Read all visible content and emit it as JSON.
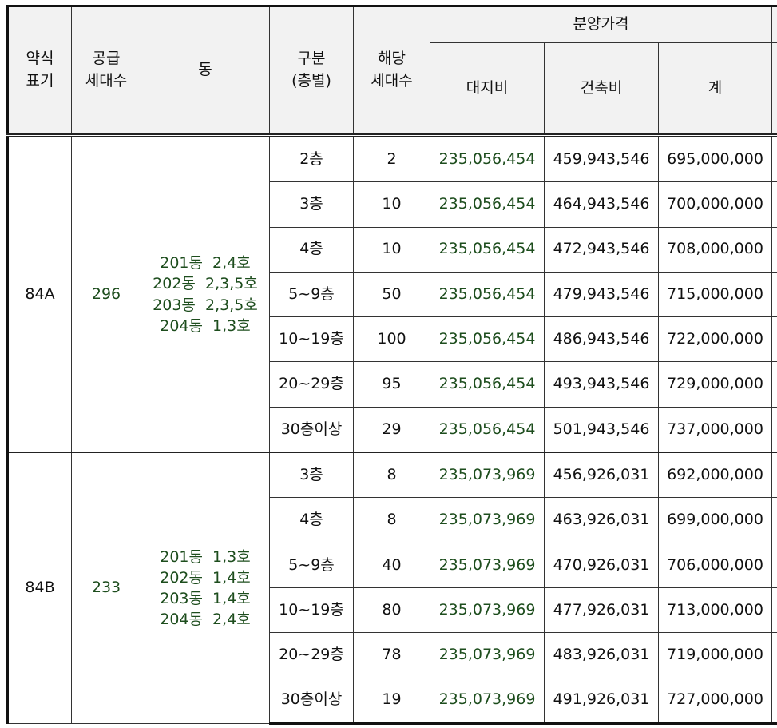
{
  "header": {
    "type_code": [
      "약식",
      "표기"
    ],
    "supply_units": [
      "공급",
      "세대수"
    ],
    "building": "동",
    "category": [
      "구분",
      "(층별)"
    ],
    "applicable_units": [
      "해당",
      "세대수"
    ],
    "sale_price": "분양가격",
    "land_cost": "대지비",
    "construction_cost": "건축비",
    "total": "계"
  },
  "groups": [
    {
      "type_code": "84A",
      "supply_units": "296",
      "buildings": [
        "201동  2,4호",
        "202동  2,3,5호",
        "203동  2,3,5호",
        "204동  1,3호"
      ],
      "rows": [
        {
          "floor": "2층",
          "units": "2",
          "land": "235,056,454",
          "construction": "459,943,546",
          "total": "695,000,000"
        },
        {
          "floor": "3층",
          "units": "10",
          "land": "235,056,454",
          "construction": "464,943,546",
          "total": "700,000,000"
        },
        {
          "floor": "4층",
          "units": "10",
          "land": "235,056,454",
          "construction": "472,943,546",
          "total": "708,000,000"
        },
        {
          "floor": "5~9층",
          "units": "50",
          "land": "235,056,454",
          "construction": "479,943,546",
          "total": "715,000,000"
        },
        {
          "floor": "10~19층",
          "units": "100",
          "land": "235,056,454",
          "construction": "486,943,546",
          "total": "722,000,000"
        },
        {
          "floor": "20~29층",
          "units": "95",
          "land": "235,056,454",
          "construction": "493,943,546",
          "total": "729,000,000"
        },
        {
          "floor": "30층이상",
          "units": "29",
          "land": "235,056,454",
          "construction": "501,943,546",
          "total": "737,000,000"
        }
      ]
    },
    {
      "type_code": "84B",
      "supply_units": "233",
      "buildings": [
        "201동  1,3호",
        "202동  1,4호",
        "203동  1,4호",
        "204동  2,4호"
      ],
      "rows": [
        {
          "floor": "3층",
          "units": "8",
          "land": "235,073,969",
          "construction": "456,926,031",
          "total": "692,000,000"
        },
        {
          "floor": "4층",
          "units": "8",
          "land": "235,073,969",
          "construction": "463,926,031",
          "total": "699,000,000"
        },
        {
          "floor": "5~9층",
          "units": "40",
          "land": "235,073,969",
          "construction": "470,926,031",
          "total": "706,000,000"
        },
        {
          "floor": "10~19층",
          "units": "80",
          "land": "235,073,969",
          "construction": "477,926,031",
          "total": "713,000,000"
        },
        {
          "floor": "20~29층",
          "units": "78",
          "land": "235,073,969",
          "construction": "483,926,031",
          "total": "719,000,000"
        },
        {
          "floor": "30층이상",
          "units": "19",
          "land": "235,073,969",
          "construction": "491,926,031",
          "total": "727,000,000"
        }
      ]
    }
  ]
}
